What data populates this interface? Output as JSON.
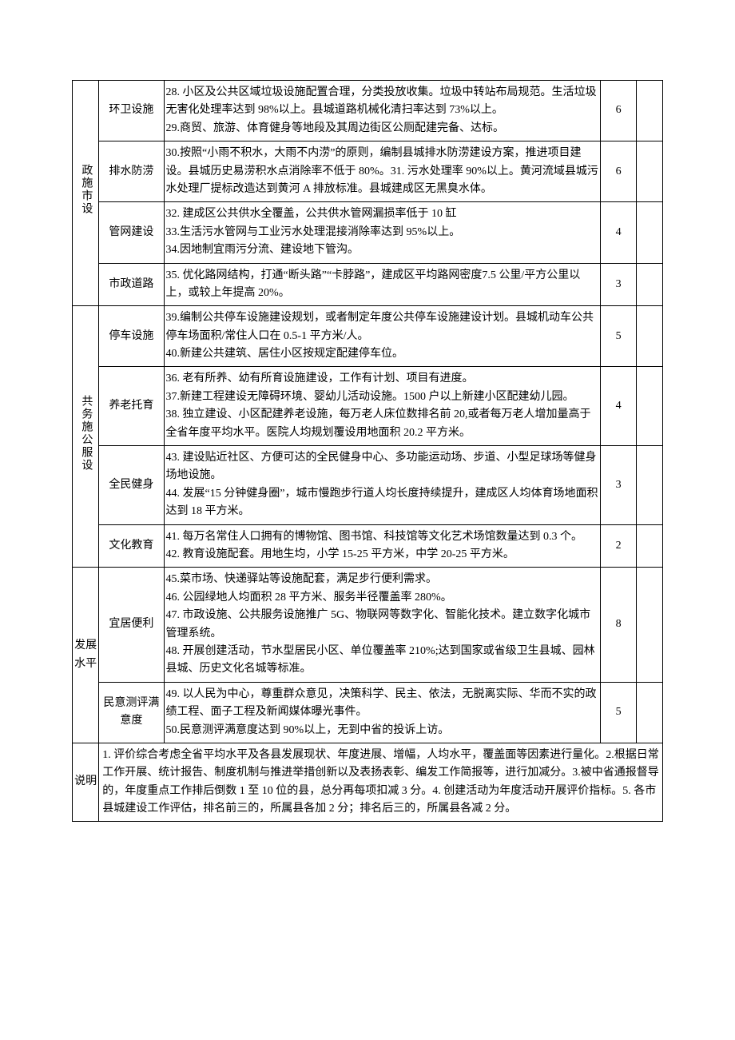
{
  "sections": [
    {
      "category": "政施市设",
      "rows": [
        {
          "sub": "环卫设施",
          "desc": "28. 小区及公共区域垃圾设施配置合理，分类投放收集。垃圾中转站布局规范。生活垃圾无害化处理率达到 98%以上。县城道路机械化清扫率达到 73%以上。\n29.商贸、旅游、体育健身等地段及其周边街区公厕配建完备、达标。",
          "score": "6"
        },
        {
          "sub": "排水防涝",
          "desc": "30.按照“小雨不积水，大雨不内涝”的原则，编制县城排水防涝建设方案，推进项目建设。县城历史易涝积水点消除率不低于 80%。31. 污水处理率 90%以上。黄河流域县城污水处理厂提标改造达到黄河 A 排放标准。县城建成区无黑臭水体。",
          "score": "6"
        },
        {
          "sub": "管网建设",
          "desc": "32. 建成区公共供水全覆盖，公共供水管网漏损率低于 10 缸\n33.生活污水管网与工业污水处理混接消除率达到 95%以上。\n34.因地制宜雨污分流、建设地下管沟。",
          "score": "4"
        },
        {
          "sub": "市政道路",
          "desc": "35. 优化路网结构，打通“断头路”“卡脖路”，建成区平均路网密度7.5 公里/平方公里以上，或较上年提高 20%。",
          "score": "3"
        }
      ]
    },
    {
      "category": "共务施公服设",
      "rows": [
        {
          "sub": "停车设施",
          "desc": "39.编制公共停车设施建设规划，或者制定年度公共停车设施建设计划。县城机动车公共停车场面积/常住人口在 0.5-1 平方米/人。\n40.新建公共建筑、居住小区按规定配建停车位。",
          "score": "5"
        },
        {
          "sub": "养老托育",
          "desc": "36. 老有所养、幼有所育设施建设，工作有计划、项目有进度。\n37.新建工程建设无障碍环境、婴幼儿活动设施。1500 户以上新建小区配建幼儿园。\n38. 独立建设、小区配建养老设施，每万老人床位数排名前 20,或者每万老人增加量高于全省年度平均水平。医院人均规划覆设用地面积 20.2 平方米。",
          "score": "4"
        },
        {
          "sub": "全民健身",
          "desc": "43. 建设贴近社区、方便可达的全民健身中心、多功能运动场、步道、小型足球场等健身场地设施。\n44. 发展“15 分钟健身圈”，城市慢跑步行道人均长度持续提升，建成区人均体育场地面积达到 18 平方米。",
          "score": "3"
        },
        {
          "sub": "文化教育",
          "desc": "41. 每万名常住人口拥有的博物馆、图书馆、科技馆等文化艺术场馆数量达到 0.3 个。\n42. 教育设施配套。用地生均，小学 15-25 平方米，中学 20-25 平方米。",
          "score": "2"
        }
      ]
    },
    {
      "category": "发展水平",
      "categoryH": true,
      "rows": [
        {
          "sub": "宜居便利",
          "desc": "45.菜市场、快递驿站等设施配套，满足步行便利需求。\n46. 公园绿地人均面积 28 平方米、服务半径覆盖率 280%。\n47. 市政设施、公共服务设施推广 5G、物联网等数字化、智能化技术。建立数字化城市管理系统。\n48. 开展创建活动，节水型居民小区、单位覆盖率 210%;达到国家或省级卫生县城、园林县城、历史文化名城等标准。",
          "score": "8"
        },
        {
          "sub": "民意测评满意度",
          "desc": "49. 以人民为中心，尊重群众意见，决策科学、民主、依法，无脱离实际、华而不实的政绩工程、面子工程及新闻媒体曝光事件。\n50.民意测评满意度达到 90%以上，无到中省的投诉上访。",
          "score": "5"
        }
      ]
    }
  ],
  "note": {
    "label": "说明",
    "text": "1. 评价综合考虑全省平均水平及各县发展现状、年度进展、增幅，人均水平，覆盖面等因素进行量化。2.根据日常工作开展、统计报告、制度机制与推进举措创新以及表扬表彰、编发工作简报等，进行加减分。3.被中省通报督导的，年度重点工作排后倒数 1 至 10 位的县，总分再每项扣减 3 分。4. 创建活动为年度活动开展评价指标。5. 各市县城建设工作评估，排名前三的，所属县各加 2 分；排名后三的，所属县各减 2 分。"
  }
}
